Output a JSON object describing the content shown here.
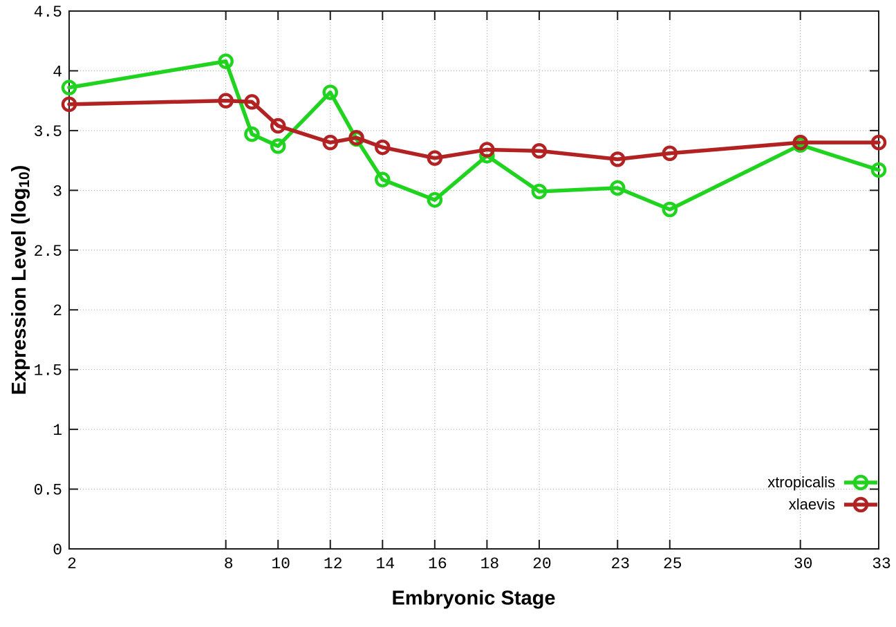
{
  "axes": {
    "x": {
      "title": "Embryonic Stage",
      "tick_labels": [
        "2",
        "8",
        "10",
        "12",
        "14",
        "16",
        "18",
        "20",
        "23",
        "25",
        "30",
        "33"
      ],
      "tick_values": [
        2,
        8,
        10,
        12,
        14,
        16,
        18,
        20,
        23,
        25,
        30,
        33
      ],
      "range": [
        2,
        33
      ]
    },
    "y": {
      "title_prefix": "Expression Level (log",
      "title_sub": "10",
      "title_suffix": ")",
      "tick_labels": [
        "0",
        "0.5",
        "1",
        "1.5",
        "2",
        "2.5",
        "3",
        "3.5",
        "4",
        "4.5"
      ],
      "tick_values": [
        0,
        0.5,
        1,
        1.5,
        2,
        2.5,
        3,
        3.5,
        4,
        4.5
      ],
      "range": [
        0,
        4.5
      ]
    }
  },
  "legend": {
    "entries": [
      {
        "label": "xtropicalis",
        "series": "xtropicalis"
      },
      {
        "label": "xlaevis",
        "series": "xlaevis"
      }
    ],
    "position": "bottom-right"
  },
  "colors": {
    "xtropicalis": "#1fd31f",
    "xlaevis": "#b22222",
    "grid": "#a6a6a6",
    "axis": "#1c1c1c",
    "text": "#000000",
    "background": "#ffffff"
  },
  "chart_data": {
    "type": "line",
    "title": "",
    "xlabel": "Embryonic Stage",
    "ylabel": "Expression Level (log10)",
    "x": [
      2,
      8,
      9,
      10,
      12,
      13,
      14,
      16,
      18,
      20,
      23,
      25,
      30,
      33
    ],
    "series": [
      {
        "name": "xtropicalis",
        "color": "#1fd31f",
        "marker": "open-circle",
        "values": [
          3.86,
          4.08,
          3.47,
          3.37,
          3.82,
          3.43,
          3.09,
          2.92,
          3.29,
          2.99,
          3.02,
          2.84,
          3.38,
          3.17
        ]
      },
      {
        "name": "xlaevis",
        "color": "#b22222",
        "marker": "open-circle",
        "values": [
          3.72,
          3.75,
          3.74,
          3.54,
          3.4,
          3.44,
          3.36,
          3.27,
          3.34,
          3.33,
          3.26,
          3.31,
          3.4,
          3.4
        ]
      }
    ],
    "xlim": [
      2,
      33
    ],
    "ylim": [
      0,
      4.5
    ],
    "x_ticks": [
      2,
      8,
      10,
      12,
      14,
      16,
      18,
      20,
      23,
      25,
      30,
      33
    ],
    "y_ticks": [
      0,
      0.5,
      1,
      1.5,
      2,
      2.5,
      3,
      3.5,
      4,
      4.5
    ],
    "grid": true,
    "grid_style": "dotted",
    "legend_position": "bottom-right"
  }
}
